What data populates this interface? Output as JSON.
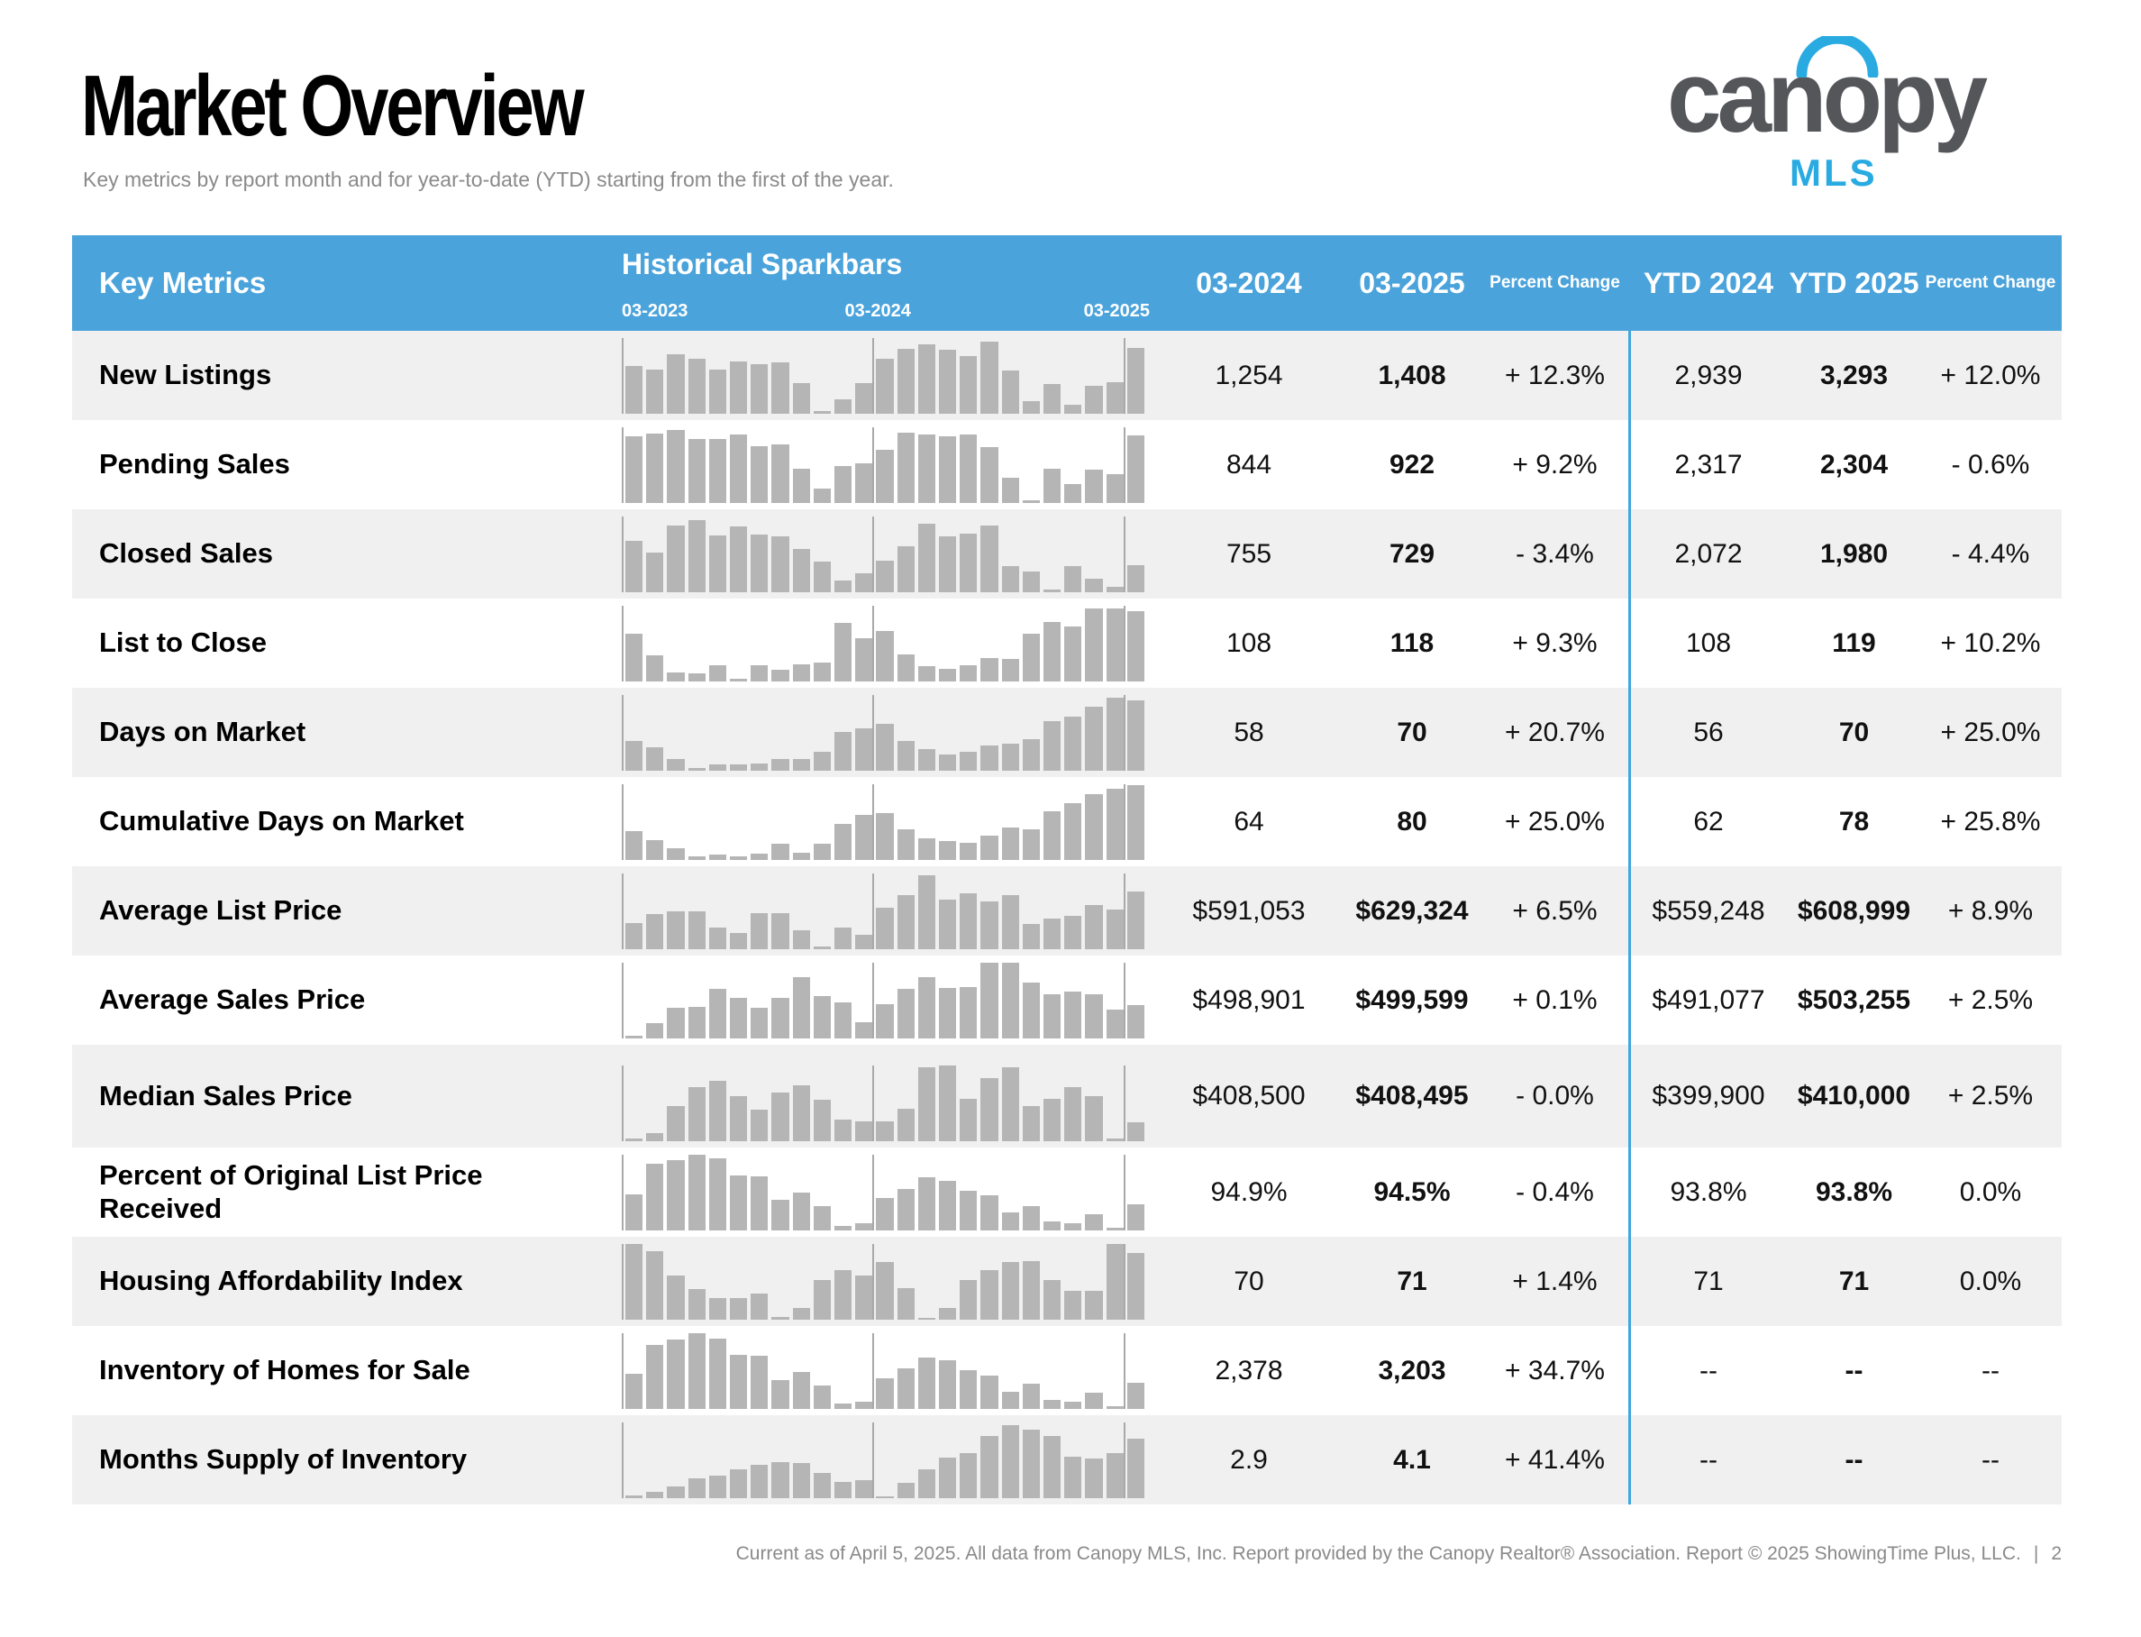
{
  "page": {
    "title": "Market Overview",
    "subtitle": "Key metrics by report month and for year-to-date (YTD) starting from the first of the year.",
    "footer": "Current as of April 5, 2025. All data from Canopy MLS, Inc. Report provided by the Canopy Realtor® Association. Report © 2025 ShowingTime Plus, LLC.",
    "footer_separator": "|",
    "page_number": "2"
  },
  "logo": {
    "brand": "canopy",
    "sub": "MLS"
  },
  "colors": {
    "header_blue": "#4AA3DB",
    "divider_blue": "#41A7DE",
    "bar_gray": "#B5B5B5",
    "row_alt": "#F0F0F0",
    "logo_gray": "#54565A",
    "logo_blue": "#29ABE2"
  },
  "table": {
    "headers": {
      "key_metrics": "Key Metrics",
      "sparkbars_title": "Historical Sparkbars",
      "spark_start": "03-2023",
      "spark_mid": "03-2024",
      "spark_end": "03-2025",
      "col_month_prev": "03-2024",
      "col_month_curr": "03-2025",
      "col_pct": "Percent Change",
      "col_ytd_prev": "YTD 2024",
      "col_ytd_curr": "YTD 2025",
      "col_ytd_pct": "Percent Change"
    },
    "rows": [
      {
        "label": "New Listings",
        "m_prev": "1,254",
        "m_curr": "1,408",
        "m_pct": "+ 12.3%",
        "ytd_prev": "2,939",
        "ytd_curr": "3,293",
        "ytd_pct": "+ 12.0%",
        "spark": [
          63,
          58,
          78,
          73,
          58,
          69,
          66,
          68,
          41,
          4,
          19,
          40,
          73,
          86,
          92,
          85,
          76,
          95,
          57,
          17,
          39,
          12,
          37,
          42,
          87
        ]
      },
      {
        "label": "Pending Sales",
        "m_prev": "844",
        "m_curr": "922",
        "m_pct": "+ 9.2%",
        "ytd_prev": "2,317",
        "ytd_curr": "2,304",
        "ytd_pct": "- 0.6%",
        "spark": [
          88,
          92,
          97,
          84,
          85,
          91,
          75,
          77,
          45,
          19,
          49,
          52,
          70,
          93,
          91,
          88,
          90,
          74,
          33,
          3,
          45,
          25,
          44,
          38,
          89
        ]
      },
      {
        "label": "Closed Sales",
        "m_prev": "755",
        "m_curr": "729",
        "m_pct": "- 3.4%",
        "ytd_prev": "2,072",
        "ytd_curr": "1,980",
        "ytd_pct": "- 4.4%",
        "spark": [
          68,
          52,
          88,
          95,
          75,
          87,
          76,
          74,
          57,
          40,
          16,
          25,
          42,
          61,
          90,
          74,
          77,
          88,
          35,
          27,
          4,
          35,
          18,
          7,
          36
        ]
      },
      {
        "label": "List to Close",
        "m_prev": "108",
        "m_curr": "118",
        "m_pct": "+ 9.3%",
        "ytd_prev": "108",
        "ytd_curr": "119",
        "ytd_pct": "+ 10.2%",
        "spark": [
          63,
          35,
          12,
          11,
          21,
          3,
          21,
          16,
          23,
          25,
          77,
          57,
          67,
          36,
          20,
          17,
          21,
          31,
          30,
          63,
          79,
          73,
          96,
          96,
          93
        ]
      },
      {
        "label": "Days on Market",
        "m_prev": "58",
        "m_curr": "70",
        "m_pct": "+ 20.7%",
        "ytd_prev": "56",
        "ytd_curr": "70",
        "ytd_pct": "+ 25.0%",
        "spark": [
          39,
          31,
          16,
          4,
          8,
          8,
          10,
          16,
          16,
          25,
          51,
          56,
          62,
          39,
          29,
          21,
          25,
          33,
          36,
          42,
          65,
          72,
          84,
          97,
          93
        ]
      },
      {
        "label": "Cumulative Days on Market",
        "m_prev": "64",
        "m_curr": "80",
        "m_pct": "+ 25.0%",
        "ytd_prev": "62",
        "ytd_curr": "78",
        "ytd_pct": "+ 25.8%",
        "spark": [
          38,
          26,
          15,
          5,
          7,
          5,
          8,
          21,
          10,
          22,
          48,
          60,
          62,
          40,
          28,
          25,
          23,
          32,
          43,
          41,
          64,
          75,
          87,
          94,
          99
        ]
      },
      {
        "label": "Average List Price",
        "m_prev": "$591,053",
        "m_curr": "$629,324",
        "m_pct": "+ 6.5%",
        "ytd_prev": "$559,248",
        "ytd_curr": "$608,999",
        "ytd_pct": "+ 8.9%",
        "spark": [
          34,
          46,
          50,
          50,
          28,
          22,
          48,
          48,
          25,
          3,
          29,
          19,
          55,
          72,
          98,
          66,
          74,
          63,
          72,
          33,
          40,
          44,
          58,
          52,
          76
        ]
      },
      {
        "label": "Average Sales Price",
        "m_prev": "$498,901",
        "m_curr": "$499,599",
        "m_pct": "+ 0.1%",
        "ytd_prev": "$491,077",
        "ytd_curr": "$503,255",
        "ytd_pct": "+ 2.5%",
        "spark": [
          3,
          20,
          41,
          42,
          65,
          54,
          40,
          54,
          81,
          56,
          48,
          21,
          45,
          66,
          81,
          67,
          68,
          100,
          100,
          74,
          58,
          62,
          58,
          38,
          44
        ]
      },
      {
        "label": "Median Sales Price",
        "m_prev": "$408,500",
        "m_curr": "$408,495",
        "m_pct": "- 0.0%",
        "ytd_prev": "$399,900",
        "ytd_curr": "$410,000",
        "ytd_pct": "+ 2.5%",
        "spark": [
          4,
          11,
          46,
          72,
          80,
          59,
          42,
          64,
          74,
          55,
          29,
          26,
          26,
          43,
          98,
          100,
          56,
          83,
          98,
          47,
          56,
          72,
          60,
          4,
          25
        ]
      },
      {
        "label": "Percent of Original List Price Received",
        "m_prev": "94.9%",
        "m_curr": "94.5%",
        "m_pct": "- 0.4%",
        "ytd_prev": "93.8%",
        "ytd_curr": "93.8%",
        "ytd_pct": "0.0%",
        "spark": [
          48,
          88,
          93,
          100,
          95,
          73,
          71,
          40,
          50,
          32,
          6,
          9,
          43,
          55,
          70,
          65,
          52,
          46,
          24,
          32,
          12,
          10,
          21,
          4,
          35
        ]
      },
      {
        "label": "Housing Affordability Index",
        "m_prev": "70",
        "m_curr": "71",
        "m_pct": "+ 1.4%",
        "ytd_prev": "71",
        "ytd_curr": "71",
        "ytd_pct": "0.0%",
        "spark": [
          100,
          90,
          58,
          40,
          28,
          28,
          34,
          3,
          15,
          52,
          65,
          58,
          76,
          42,
          2,
          15,
          52,
          65,
          76,
          77,
          52,
          38,
          38,
          100,
          88
        ]
      },
      {
        "label": "Inventory of Homes for Sale",
        "m_prev": "2,378",
        "m_curr": "3,203",
        "m_pct": "+ 34.7%",
        "ytd_prev": "--",
        "ytd_curr": "--",
        "ytd_pct": "--",
        "spark": [
          47,
          85,
          92,
          100,
          93,
          71,
          70,
          38,
          49,
          31,
          7,
          9,
          41,
          53,
          68,
          64,
          51,
          44,
          23,
          33,
          12,
          10,
          21,
          3,
          34
        ]
      },
      {
        "label": "Months Supply of Inventory",
        "m_prev": "2.9",
        "m_curr": "4.1",
        "m_pct": "+ 41.4%",
        "ytd_prev": "--",
        "ytd_curr": "--",
        "ytd_pct": "--",
        "spark": [
          3,
          8,
          16,
          26,
          30,
          38,
          44,
          48,
          46,
          33,
          22,
          24,
          2,
          20,
          38,
          54,
          59,
          82,
          97,
          91,
          82,
          55,
          52,
          60,
          78
        ]
      }
    ]
  }
}
